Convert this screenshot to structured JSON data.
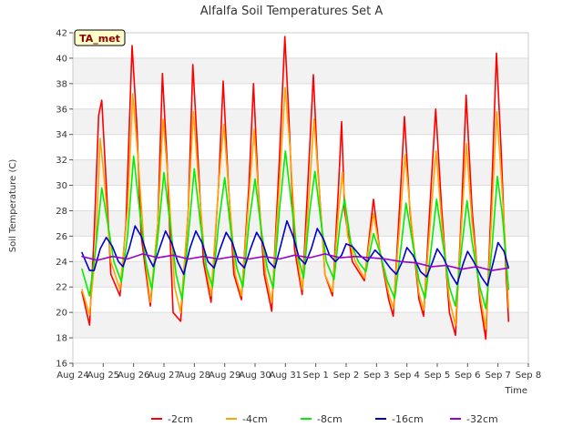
{
  "chart_data": {
    "type": "line",
    "title": "Alfalfa Soil Temperatures Set A",
    "xlabel": "Time",
    "ylabel": "Soil Temperature (C)",
    "ylim": [
      16,
      42
    ],
    "yticks": [
      16,
      18,
      20,
      22,
      24,
      26,
      28,
      30,
      32,
      34,
      36,
      38,
      40,
      42
    ],
    "xlim": [
      0,
      15
    ],
    "xticks": [
      "Aug 24",
      "Aug 25",
      "Aug 26",
      "Aug 27",
      "Aug 28",
      "Aug 29",
      "Aug 30",
      "Aug 31",
      "Sep 1",
      "Sep 2",
      "Sep 3",
      "Sep 4",
      "Sep 5",
      "Sep 6",
      "Sep 7",
      "Sep 8"
    ],
    "x_unit": "days since Aug 24",
    "grid": "horizontal bands",
    "legend_position": "bottom",
    "badge": "TA_met",
    "series": [
      {
        "name": "-2cm",
        "color": "#ff0000",
        "points": [
          [
            0.3,
            21.6
          ],
          [
            0.55,
            19.0
          ],
          [
            0.7,
            26.0
          ],
          [
            0.85,
            35.5
          ],
          [
            0.95,
            36.7
          ],
          [
            1.1,
            30
          ],
          [
            1.25,
            23.0
          ],
          [
            1.55,
            21.3
          ],
          [
            1.75,
            27
          ],
          [
            1.95,
            41.0
          ],
          [
            2.1,
            35
          ],
          [
            2.25,
            26
          ],
          [
            2.55,
            20.5
          ],
          [
            2.8,
            27
          ],
          [
            2.95,
            38.8
          ],
          [
            3.1,
            32
          ],
          [
            3.3,
            20.0
          ],
          [
            3.55,
            19.3
          ],
          [
            3.8,
            28
          ],
          [
            3.95,
            39.5
          ],
          [
            4.1,
            33
          ],
          [
            4.3,
            24
          ],
          [
            4.55,
            20.8
          ],
          [
            4.8,
            30
          ],
          [
            4.95,
            38.2
          ],
          [
            5.1,
            31
          ],
          [
            5.3,
            23
          ],
          [
            5.55,
            21.0
          ],
          [
            5.8,
            30
          ],
          [
            5.95,
            38.0
          ],
          [
            6.1,
            30
          ],
          [
            6.3,
            23
          ],
          [
            6.55,
            20.1
          ],
          [
            6.8,
            32
          ],
          [
            6.98,
            41.7
          ],
          [
            7.1,
            36
          ],
          [
            7.3,
            25
          ],
          [
            7.55,
            21.4
          ],
          [
            7.8,
            33
          ],
          [
            7.92,
            38.7
          ],
          [
            8.05,
            32
          ],
          [
            8.3,
            23
          ],
          [
            8.55,
            21.3
          ],
          [
            8.75,
            30
          ],
          [
            8.85,
            35.0
          ],
          [
            8.95,
            28
          ],
          [
            9.2,
            24
          ],
          [
            9.6,
            22.5
          ],
          [
            9.9,
            28.9
          ],
          [
            10.1,
            25
          ],
          [
            10.4,
            21
          ],
          [
            10.55,
            19.7
          ],
          [
            10.8,
            30
          ],
          [
            10.92,
            35.4
          ],
          [
            11.1,
            28
          ],
          [
            11.4,
            21
          ],
          [
            11.55,
            19.7
          ],
          [
            11.8,
            30
          ],
          [
            11.95,
            36.0
          ],
          [
            12.15,
            28
          ],
          [
            12.4,
            20
          ],
          [
            12.6,
            18.2
          ],
          [
            12.8,
            28
          ],
          [
            12.95,
            37.1
          ],
          [
            13.15,
            28
          ],
          [
            13.4,
            21
          ],
          [
            13.6,
            17.9
          ],
          [
            13.8,
            30
          ],
          [
            13.95,
            40.4
          ],
          [
            14.1,
            33
          ],
          [
            14.25,
            24
          ],
          [
            14.35,
            19.3
          ]
        ]
      },
      {
        "name": "-4cm",
        "color": "#ffa500",
        "points": [
          [
            0.3,
            21.8
          ],
          [
            0.55,
            19.8
          ],
          [
            0.75,
            25
          ],
          [
            0.9,
            33.7
          ],
          [
            1.05,
            30
          ],
          [
            1.25,
            24
          ],
          [
            1.55,
            21.8
          ],
          [
            1.8,
            28
          ],
          [
            1.97,
            37.2
          ],
          [
            2.15,
            32
          ],
          [
            2.35,
            25
          ],
          [
            2.55,
            20.8
          ],
          [
            2.8,
            27
          ],
          [
            2.97,
            35.2
          ],
          [
            3.15,
            30
          ],
          [
            3.35,
            22
          ],
          [
            3.55,
            20.0
          ],
          [
            3.8,
            28
          ],
          [
            3.97,
            35.8
          ],
          [
            4.15,
            30
          ],
          [
            4.35,
            24
          ],
          [
            4.55,
            21.3
          ],
          [
            4.8,
            30
          ],
          [
            4.97,
            34.8
          ],
          [
            5.15,
            29
          ],
          [
            5.35,
            23
          ],
          [
            5.55,
            21.3
          ],
          [
            5.8,
            29
          ],
          [
            5.97,
            34.4
          ],
          [
            6.15,
            28
          ],
          [
            6.35,
            23
          ],
          [
            6.55,
            20.8
          ],
          [
            6.8,
            30
          ],
          [
            6.99,
            37.7
          ],
          [
            7.15,
            33
          ],
          [
            7.35,
            25
          ],
          [
            7.55,
            21.8
          ],
          [
            7.8,
            30
          ],
          [
            7.94,
            35.2
          ],
          [
            8.1,
            30
          ],
          [
            8.3,
            23
          ],
          [
            8.55,
            21.6
          ],
          [
            8.75,
            28
          ],
          [
            8.88,
            31.0
          ],
          [
            9.05,
            26
          ],
          [
            9.3,
            24
          ],
          [
            9.6,
            22.7
          ],
          [
            9.9,
            27.8
          ],
          [
            10.1,
            25
          ],
          [
            10.4,
            21.5
          ],
          [
            10.55,
            20.3
          ],
          [
            10.8,
            28
          ],
          [
            10.94,
            32.4
          ],
          [
            11.15,
            27
          ],
          [
            11.4,
            21.5
          ],
          [
            11.55,
            20.2
          ],
          [
            11.8,
            28
          ],
          [
            11.96,
            32.7
          ],
          [
            12.15,
            27
          ],
          [
            12.4,
            21
          ],
          [
            12.6,
            19.0
          ],
          [
            12.8,
            27
          ],
          [
            12.96,
            33.3
          ],
          [
            13.15,
            27
          ],
          [
            13.4,
            21.5
          ],
          [
            13.6,
            18.7
          ],
          [
            13.8,
            28
          ],
          [
            13.96,
            35.8
          ],
          [
            14.1,
            31
          ],
          [
            14.25,
            25
          ],
          [
            14.35,
            20.4
          ]
        ]
      },
      {
        "name": "-8cm",
        "color": "#00ee00",
        "points": [
          [
            0.3,
            23.4
          ],
          [
            0.55,
            21.3
          ],
          [
            0.75,
            25
          ],
          [
            0.95,
            29.8
          ],
          [
            1.15,
            27
          ],
          [
            1.35,
            24
          ],
          [
            1.6,
            22.4
          ],
          [
            1.8,
            26
          ],
          [
            2.0,
            32.3
          ],
          [
            2.2,
            28
          ],
          [
            2.4,
            24
          ],
          [
            2.6,
            21.8
          ],
          [
            2.8,
            26
          ],
          [
            3.0,
            31.0
          ],
          [
            3.2,
            27
          ],
          [
            3.4,
            23
          ],
          [
            3.6,
            21.0
          ],
          [
            3.8,
            26
          ],
          [
            4.0,
            31.3
          ],
          [
            4.2,
            27
          ],
          [
            4.4,
            23.5
          ],
          [
            4.6,
            22.0
          ],
          [
            4.8,
            27
          ],
          [
            5.0,
            30.6
          ],
          [
            5.2,
            26.5
          ],
          [
            5.4,
            23.5
          ],
          [
            5.6,
            22.0
          ],
          [
            5.8,
            27
          ],
          [
            6.0,
            30.5
          ],
          [
            6.2,
            26.5
          ],
          [
            6.4,
            23.5
          ],
          [
            6.6,
            21.9
          ],
          [
            6.8,
            28
          ],
          [
            7.0,
            32.7
          ],
          [
            7.2,
            28.5
          ],
          [
            7.4,
            24.5
          ],
          [
            7.6,
            22.7
          ],
          [
            7.8,
            28
          ],
          [
            7.97,
            31.1
          ],
          [
            8.15,
            27.5
          ],
          [
            8.35,
            24
          ],
          [
            8.6,
            22.6
          ],
          [
            8.8,
            27
          ],
          [
            8.95,
            28.9
          ],
          [
            9.15,
            25.5
          ],
          [
            9.4,
            24
          ],
          [
            9.65,
            23.2
          ],
          [
            9.9,
            26.2
          ],
          [
            10.1,
            24.8
          ],
          [
            10.35,
            22.5
          ],
          [
            10.6,
            21.1
          ],
          [
            10.8,
            25
          ],
          [
            10.97,
            28.6
          ],
          [
            11.15,
            26
          ],
          [
            11.4,
            22.5
          ],
          [
            11.6,
            21.1
          ],
          [
            11.8,
            25
          ],
          [
            11.98,
            28.9
          ],
          [
            12.15,
            26
          ],
          [
            12.4,
            22
          ],
          [
            12.6,
            20.5
          ],
          [
            12.8,
            25
          ],
          [
            12.98,
            28.8
          ],
          [
            13.15,
            25.5
          ],
          [
            13.4,
            22
          ],
          [
            13.6,
            20.3
          ],
          [
            13.8,
            25
          ],
          [
            13.98,
            30.7
          ],
          [
            14.15,
            27.5
          ],
          [
            14.35,
            21.8
          ]
        ]
      },
      {
        "name": "-16cm",
        "color": "#0000cc",
        "points": [
          [
            0.3,
            24.7
          ],
          [
            0.55,
            23.3
          ],
          [
            0.7,
            23.3
          ],
          [
            0.9,
            25
          ],
          [
            1.1,
            25.9
          ],
          [
            1.3,
            25.2
          ],
          [
            1.5,
            24.0
          ],
          [
            1.65,
            23.6
          ],
          [
            1.85,
            25
          ],
          [
            2.05,
            26.8
          ],
          [
            2.25,
            26.0
          ],
          [
            2.45,
            24.5
          ],
          [
            2.65,
            23.6
          ],
          [
            2.85,
            25
          ],
          [
            3.05,
            26.4
          ],
          [
            3.25,
            25.5
          ],
          [
            3.45,
            24
          ],
          [
            3.65,
            23.0
          ],
          [
            3.85,
            25
          ],
          [
            4.05,
            26.4
          ],
          [
            4.25,
            25.5
          ],
          [
            4.45,
            24
          ],
          [
            4.65,
            23.5
          ],
          [
            4.85,
            25
          ],
          [
            5.05,
            26.3
          ],
          [
            5.25,
            25.5
          ],
          [
            5.45,
            24
          ],
          [
            5.65,
            23.5
          ],
          [
            5.85,
            25
          ],
          [
            6.05,
            26.3
          ],
          [
            6.25,
            25.5
          ],
          [
            6.45,
            24
          ],
          [
            6.65,
            23.5
          ],
          [
            6.85,
            25.3
          ],
          [
            7.05,
            27.2
          ],
          [
            7.25,
            26.0
          ],
          [
            7.45,
            24.3
          ],
          [
            7.65,
            23.8
          ],
          [
            7.85,
            25
          ],
          [
            8.05,
            26.6
          ],
          [
            8.25,
            25.8
          ],
          [
            8.45,
            24.5
          ],
          [
            8.65,
            24.0
          ],
          [
            8.85,
            24.5
          ],
          [
            9.0,
            25.4
          ],
          [
            9.2,
            25.2
          ],
          [
            9.45,
            24.5
          ],
          [
            9.7,
            24.0
          ],
          [
            9.95,
            24.9
          ],
          [
            10.2,
            24.3
          ],
          [
            10.45,
            23.5
          ],
          [
            10.65,
            23.0
          ],
          [
            10.85,
            24
          ],
          [
            11.0,
            25.1
          ],
          [
            11.2,
            24.5
          ],
          [
            11.45,
            23.2
          ],
          [
            11.65,
            22.8
          ],
          [
            11.85,
            24
          ],
          [
            12.0,
            25.0
          ],
          [
            12.2,
            24.3
          ],
          [
            12.45,
            23
          ],
          [
            12.65,
            22.2
          ],
          [
            12.85,
            23.8
          ],
          [
            13.0,
            24.8
          ],
          [
            13.2,
            24.0
          ],
          [
            13.45,
            22.8
          ],
          [
            13.65,
            22.1
          ],
          [
            13.85,
            24
          ],
          [
            14.0,
            25.5
          ],
          [
            14.2,
            24.8
          ],
          [
            14.35,
            23.5
          ]
        ]
      },
      {
        "name": "-32cm",
        "color": "#9900cc",
        "points": [
          [
            0.3,
            24.4
          ],
          [
            0.8,
            24.1
          ],
          [
            1.3,
            24.4
          ],
          [
            1.8,
            24.2
          ],
          [
            2.3,
            24.6
          ],
          [
            2.8,
            24.3
          ],
          [
            3.3,
            24.5
          ],
          [
            3.8,
            24.2
          ],
          [
            4.3,
            24.4
          ],
          [
            4.8,
            24.2
          ],
          [
            5.3,
            24.4
          ],
          [
            5.8,
            24.2
          ],
          [
            6.3,
            24.4
          ],
          [
            6.8,
            24.2
          ],
          [
            7.3,
            24.5
          ],
          [
            7.8,
            24.3
          ],
          [
            8.3,
            24.6
          ],
          [
            8.8,
            24.3
          ],
          [
            9.3,
            24.4
          ],
          [
            9.8,
            24.3
          ],
          [
            10.3,
            24.2
          ],
          [
            10.8,
            24.0
          ],
          [
            11.3,
            23.9
          ],
          [
            11.8,
            23.6
          ],
          [
            12.3,
            23.7
          ],
          [
            12.8,
            23.4
          ],
          [
            13.3,
            23.6
          ],
          [
            13.8,
            23.3
          ],
          [
            14.35,
            23.5
          ]
        ]
      }
    ]
  }
}
